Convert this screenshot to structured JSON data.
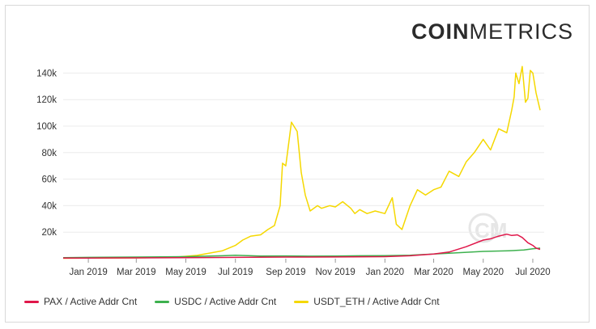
{
  "brand": {
    "bold": "COIN",
    "light": "METRICS"
  },
  "colors": {
    "PAX": "#e0174a",
    "USDC": "#3db14e",
    "USDT_ETH": "#f5d800",
    "grid": "#ececec",
    "watermark": "#e6e6e6"
  },
  "chart_data": {
    "type": "line",
    "xlabel": "",
    "ylabel": "",
    "x_range": [
      "2018-12-01",
      "2020-07-15"
    ],
    "ylim": [
      0,
      150000
    ],
    "yticks": [
      20000,
      40000,
      60000,
      80000,
      100000,
      120000,
      140000
    ],
    "ytick_labels": [
      "20k",
      "40k",
      "60k",
      "80k",
      "100k",
      "120k",
      "140k"
    ],
    "xtick_dates": [
      "2019-01-01",
      "2019-03-01",
      "2019-05-01",
      "2019-07-01",
      "2019-09-01",
      "2019-11-01",
      "2020-01-01",
      "2020-03-01",
      "2020-05-01",
      "2020-07-01"
    ],
    "xtick_labels": [
      "Jan 2019",
      "Mar 2019",
      "May 2019",
      "Jul 2019",
      "Sep 2019",
      "Nov 2019",
      "Jan 2020",
      "Mar 2020",
      "May 2020",
      "Jul 2020"
    ],
    "grid": true,
    "legend_position": "bottom-left",
    "series": [
      {
        "key": "PAX",
        "name": "PAX / Active Addr Cnt",
        "x": [
          "2018-12-01",
          "2019-01-01",
          "2019-03-01",
          "2019-05-01",
          "2019-07-01",
          "2019-09-01",
          "2019-11-01",
          "2020-01-01",
          "2020-02-01",
          "2020-03-01",
          "2020-03-20",
          "2020-04-10",
          "2020-05-01",
          "2020-05-10",
          "2020-05-20",
          "2020-05-30",
          "2020-06-05",
          "2020-06-12",
          "2020-06-18",
          "2020-06-25",
          "2020-07-01",
          "2020-07-05",
          "2020-07-10"
        ],
        "values": [
          500,
          500,
          600,
          800,
          1000,
          1200,
          1300,
          1500,
          2200,
          3500,
          5000,
          9000,
          14000,
          15000,
          17000,
          18500,
          17500,
          18000,
          16000,
          12000,
          10000,
          8000,
          7000
        ]
      },
      {
        "key": "USDC",
        "name": "USDC / Active Addr Cnt",
        "x": [
          "2018-12-01",
          "2019-01-01",
          "2019-03-01",
          "2019-05-01",
          "2019-06-15",
          "2019-07-01",
          "2019-08-01",
          "2019-09-01",
          "2019-10-01",
          "2019-11-01",
          "2019-12-01",
          "2020-01-01",
          "2020-02-01",
          "2020-03-01",
          "2020-04-01",
          "2020-05-01",
          "2020-06-01",
          "2020-06-20",
          "2020-07-01",
          "2020-07-10"
        ],
        "values": [
          800,
          1000,
          1200,
          1500,
          2200,
          2600,
          2000,
          2100,
          1900,
          2000,
          2200,
          2300,
          2600,
          3500,
          4500,
          5500,
          6000,
          6500,
          7500,
          8000
        ]
      },
      {
        "key": "USDT_ETH",
        "name": "USDT_ETH / Active Addr Cnt",
        "x": [
          "2018-12-01",
          "2019-01-01",
          "2019-03-01",
          "2019-04-15",
          "2019-05-15",
          "2019-06-15",
          "2019-07-01",
          "2019-07-10",
          "2019-07-20",
          "2019-08-01",
          "2019-08-10",
          "2019-08-18",
          "2019-08-25",
          "2019-08-28",
          "2019-09-01",
          "2019-09-08",
          "2019-09-15",
          "2019-09-20",
          "2019-09-25",
          "2019-10-01",
          "2019-10-10",
          "2019-10-15",
          "2019-10-25",
          "2019-11-01",
          "2019-11-10",
          "2019-11-20",
          "2019-11-25",
          "2019-12-01",
          "2019-12-10",
          "2019-12-20",
          "2020-01-01",
          "2020-01-10",
          "2020-01-15",
          "2020-01-22",
          "2020-02-01",
          "2020-02-10",
          "2020-02-20",
          "2020-03-01",
          "2020-03-10",
          "2020-03-20",
          "2020-04-01",
          "2020-04-10",
          "2020-04-20",
          "2020-05-01",
          "2020-05-10",
          "2020-05-20",
          "2020-05-30",
          "2020-06-05",
          "2020-06-08",
          "2020-06-10",
          "2020-06-14",
          "2020-06-18",
          "2020-06-22",
          "2020-06-25",
          "2020-06-28",
          "2020-07-01",
          "2020-07-05",
          "2020-07-10"
        ],
        "values": [
          300,
          400,
          600,
          1000,
          2500,
          6000,
          10000,
          14000,
          17000,
          18000,
          22000,
          25000,
          40000,
          72000,
          70000,
          103000,
          96000,
          65000,
          48000,
          36000,
          40000,
          38000,
          40000,
          39000,
          43000,
          38000,
          34000,
          37000,
          34000,
          36000,
          34000,
          46000,
          26000,
          22000,
          40000,
          52000,
          48000,
          52000,
          54000,
          66000,
          62000,
          73000,
          80000,
          90000,
          82000,
          98000,
          95000,
          112000,
          122000,
          140000,
          132000,
          145000,
          118000,
          121000,
          142000,
          140000,
          125000,
          112000
        ]
      }
    ]
  }
}
